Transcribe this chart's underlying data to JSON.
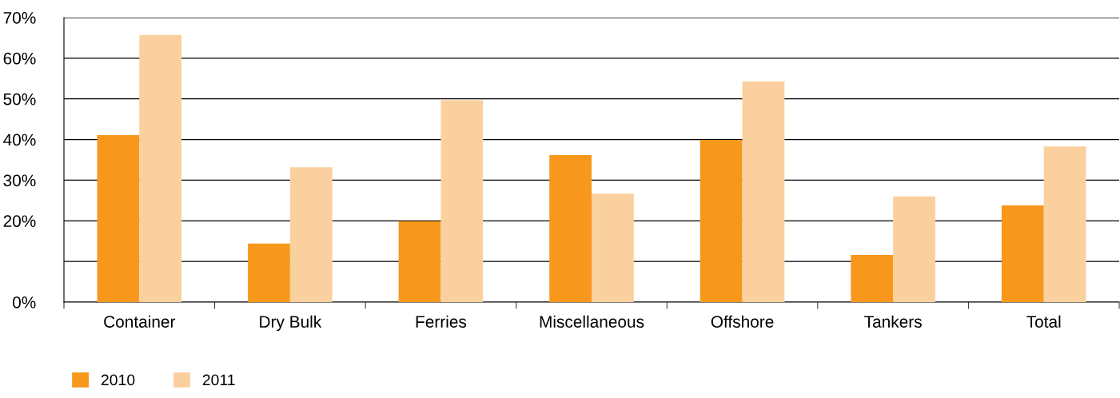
{
  "chart_data": {
    "type": "bar",
    "categories": [
      "Container",
      "Dry Bulk",
      "Ferries",
      "Miscellaneous",
      "Offshore",
      "Tankers",
      "Total"
    ],
    "series": [
      {
        "name": "2010",
        "color": "#f7981d",
        "values": [
          41.1,
          14.4,
          19.9,
          36.2,
          39.9,
          11.6,
          23.8
        ]
      },
      {
        "name": "2011",
        "color": "#fbd09f",
        "values": [
          65.7,
          33.2,
          49.7,
          26.7,
          54.3,
          26.0,
          38.3
        ]
      }
    ],
    "ylim": [
      0,
      70
    ],
    "yticks": [
      {
        "value": 0,
        "label": "0%"
      },
      {
        "value": 10,
        "label": null
      },
      {
        "value": 20,
        "label": "20%"
      },
      {
        "value": 30,
        "label": "30%"
      },
      {
        "value": 40,
        "label": "40%"
      },
      {
        "value": 50,
        "label": "50%"
      },
      {
        "value": 60,
        "label": "60%"
      },
      {
        "value": 70,
        "label": "70%"
      }
    ],
    "grid": "y",
    "legend": "bottom left"
  }
}
